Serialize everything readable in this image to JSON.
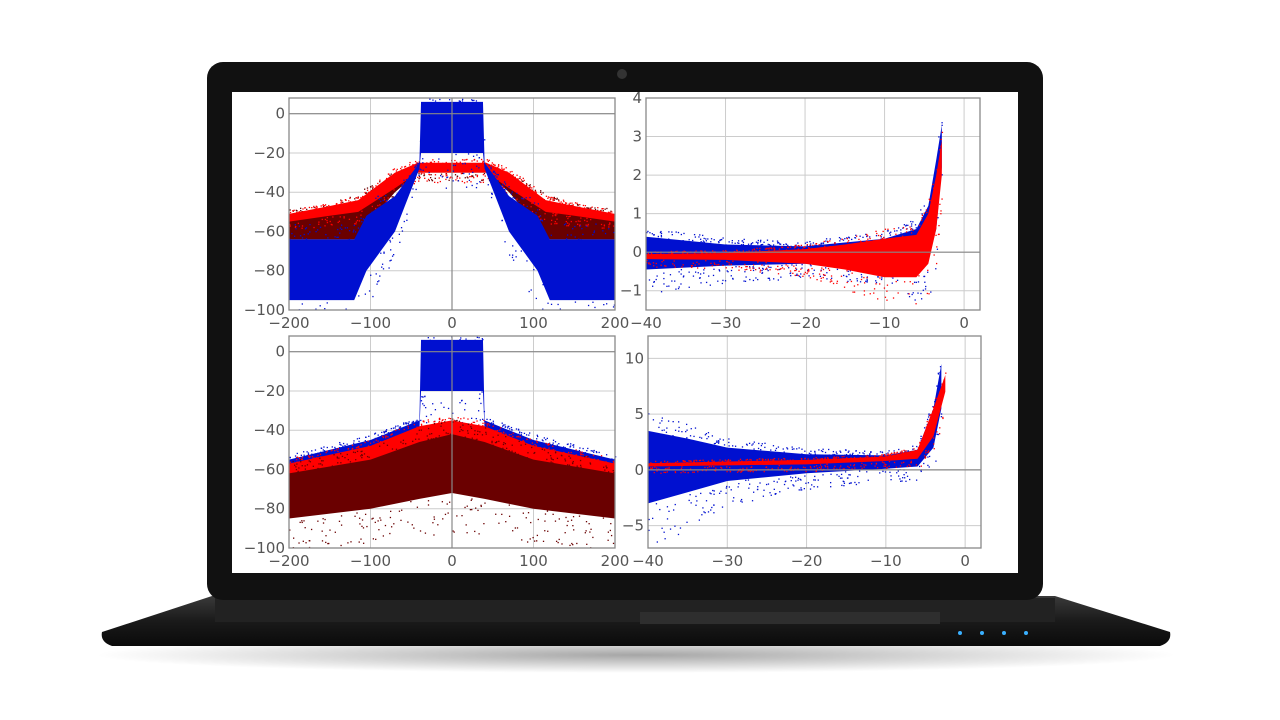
{
  "colors": {
    "blue": "#0010d0",
    "red": "#ff0000",
    "darkred": "#6a0000",
    "grid": "#cccccc",
    "frame": "#888888"
  },
  "chart_data": [
    {
      "type": "scatter",
      "title": "",
      "xlabel": "",
      "ylabel": "",
      "xlim": [
        -200,
        200
      ],
      "ylim": [
        -100,
        8
      ],
      "xticks": [
        -200,
        -100,
        0,
        100,
        200
      ],
      "yticks": [
        0,
        -20,
        -40,
        -60,
        -80,
        -100
      ],
      "xtick_labels": [
        "−200",
        "−100",
        "0",
        "100",
        "200"
      ],
      "ytick_labels": [
        "0",
        "−20",
        "−40",
        "−60",
        "−80",
        "−100"
      ],
      "grid": true,
      "series": [
        {
          "name": "dark red",
          "color": "darkred",
          "envelope": [
            [
              -200,
              -64,
              -52
            ],
            [
              -150,
              -64,
              -50
            ],
            [
              -120,
              -64,
              -46
            ],
            [
              -70,
              -40,
              -32
            ],
            [
              -42,
              -30,
              -27
            ],
            [
              42,
              -30,
              -27
            ],
            [
              70,
              -40,
              -32
            ],
            [
              120,
              -64,
              -46
            ],
            [
              150,
              -64,
              -50
            ],
            [
              200,
              -64,
              -52
            ]
          ]
        },
        {
          "name": "red",
          "color": "red",
          "envelope": [
            [
              -200,
              -55,
              -51
            ],
            [
              -150,
              -52,
              -47
            ],
            [
              -115,
              -50,
              -44
            ],
            [
              -70,
              -38,
              -30
            ],
            [
              -42,
              -30,
              -25
            ],
            [
              42,
              -30,
              -25
            ],
            [
              70,
              -38,
              -30
            ],
            [
              115,
              -50,
              -44
            ],
            [
              150,
              -52,
              -47
            ],
            [
              200,
              -55,
              -51
            ]
          ]
        },
        {
          "name": "blue",
          "color": "blue",
          "envelope": [
            [
              -200,
              -95,
              -64
            ],
            [
              -120,
              -95,
              -64
            ],
            [
              -105,
              -80,
              -52
            ],
            [
              -70,
              -60,
              -42
            ],
            [
              -40,
              -28,
              -25
            ],
            [
              -38,
              -20,
              6
            ],
            [
              38,
              -20,
              6
            ],
            [
              40,
              -28,
              -25
            ],
            [
              70,
              -60,
              -42
            ],
            [
              105,
              -80,
              -52
            ],
            [
              120,
              -95,
              -64
            ],
            [
              200,
              -95,
              -64
            ]
          ]
        }
      ]
    },
    {
      "type": "scatter",
      "title": "",
      "xlabel": "",
      "ylabel": "",
      "xlim": [
        -40,
        2
      ],
      "ylim": [
        -1.5,
        4
      ],
      "xticks": [
        -40,
        -30,
        -20,
        -10,
        0
      ],
      "yticks": [
        4,
        3,
        2,
        1,
        0,
        -1
      ],
      "xtick_labels": [
        "−40",
        "−30",
        "−20",
        "−10",
        "0"
      ],
      "ytick_labels": [
        "4",
        "3",
        "2",
        "1",
        "0",
        "−1"
      ],
      "grid": true,
      "series": [
        {
          "name": "blue",
          "color": "blue",
          "envelope": [
            [
              -40,
              -0.45,
              0.4
            ],
            [
              -30,
              -0.35,
              0.2
            ],
            [
              -20,
              -0.3,
              0.15
            ],
            [
              -15,
              -0.3,
              0.25
            ],
            [
              -10,
              -0.3,
              0.35
            ],
            [
              -6,
              -0.5,
              0.6
            ],
            [
              -4.5,
              -0.2,
              1.2
            ],
            [
              -3.5,
              0.6,
              2.4
            ],
            [
              -2.8,
              2.2,
              3.3
            ]
          ]
        },
        {
          "name": "red",
          "color": "red",
          "envelope": [
            [
              -40,
              -0.18,
              -0.05
            ],
            [
              -30,
              -0.2,
              -0.02
            ],
            [
              -20,
              -0.3,
              0.08
            ],
            [
              -15,
              -0.45,
              0.2
            ],
            [
              -10,
              -0.65,
              0.35
            ],
            [
              -6,
              -0.65,
              0.45
            ],
            [
              -4.5,
              -0.3,
              1.0
            ],
            [
              -3.5,
              0.6,
              2.0
            ],
            [
              -2.8,
              2.0,
              2.9
            ]
          ]
        }
      ]
    },
    {
      "type": "scatter",
      "title": "",
      "xlabel": "",
      "ylabel": "",
      "xlim": [
        -200,
        200
      ],
      "ylim": [
        -100,
        8
      ],
      "xticks": [
        -200,
        -100,
        0,
        100,
        200
      ],
      "yticks": [
        0,
        -20,
        -40,
        -60,
        -80,
        -100
      ],
      "xtick_labels": [
        "−200",
        "−100",
        "0",
        "100",
        "200"
      ],
      "ytick_labels": [
        "0",
        "−20",
        "−40",
        "−60",
        "−80",
        "−100"
      ],
      "grid": true,
      "series": [
        {
          "name": "blue",
          "color": "blue",
          "envelope": [
            [
              -200,
              -62,
              -55
            ],
            [
              -100,
              -55,
              -45
            ],
            [
              -40,
              -40,
              -35
            ],
            [
              -38,
              -20,
              6
            ],
            [
              38,
              -20,
              6
            ],
            [
              40,
              -40,
              -35
            ],
            [
              100,
              -55,
              -45
            ],
            [
              200,
              -62,
              -55
            ]
          ]
        },
        {
          "name": "red",
          "color": "red",
          "envelope": [
            [
              -200,
              -65,
              -57
            ],
            [
              -100,
              -58,
              -48
            ],
            [
              -40,
              -48,
              -38
            ],
            [
              0,
              -42,
              -35
            ],
            [
              40,
              -48,
              -38
            ],
            [
              100,
              -58,
              -48
            ],
            [
              200,
              -65,
              -57
            ]
          ]
        },
        {
          "name": "dark red",
          "color": "darkred",
          "envelope": [
            [
              -200,
              -85,
              -62
            ],
            [
              -100,
              -80,
              -55
            ],
            [
              -40,
              -75,
              -46
            ],
            [
              0,
              -72,
              -42
            ],
            [
              40,
              -75,
              -46
            ],
            [
              100,
              -80,
              -55
            ],
            [
              200,
              -85,
              -62
            ]
          ]
        }
      ]
    },
    {
      "type": "scatter",
      "title": "",
      "xlabel": "",
      "ylabel": "",
      "xlim": [
        -40,
        2
      ],
      "ylim": [
        -7,
        12
      ],
      "xticks": [
        -40,
        -30,
        -20,
        -10,
        0
      ],
      "yticks": [
        10,
        5,
        0,
        -5
      ],
      "xtick_labels": [
        "−40",
        "−30",
        "−20",
        "−10",
        "0"
      ],
      "ytick_labels": [
        "10",
        "5",
        "0",
        "−5"
      ],
      "grid": true,
      "series": [
        {
          "name": "blue",
          "color": "blue",
          "envelope": [
            [
              -40,
              -3,
              3.5
            ],
            [
              -35,
              -2,
              2.8
            ],
            [
              -30,
              -1,
              2
            ],
            [
              -20,
              -0.3,
              1.4
            ],
            [
              -10,
              0.1,
              1.3
            ],
            [
              -6,
              0.3,
              1.8
            ],
            [
              -4,
              2,
              5.5
            ],
            [
              -3,
              5.5,
              9.5
            ]
          ]
        },
        {
          "name": "red",
          "color": "red",
          "envelope": [
            [
              -40,
              0.3,
              0.6
            ],
            [
              -20,
              0.5,
              0.9
            ],
            [
              -10,
              0.8,
              1.2
            ],
            [
              -6,
              1.0,
              1.8
            ],
            [
              -4,
              3,
              5.5
            ],
            [
              -2.5,
              7,
              8.5
            ]
          ]
        }
      ]
    }
  ]
}
